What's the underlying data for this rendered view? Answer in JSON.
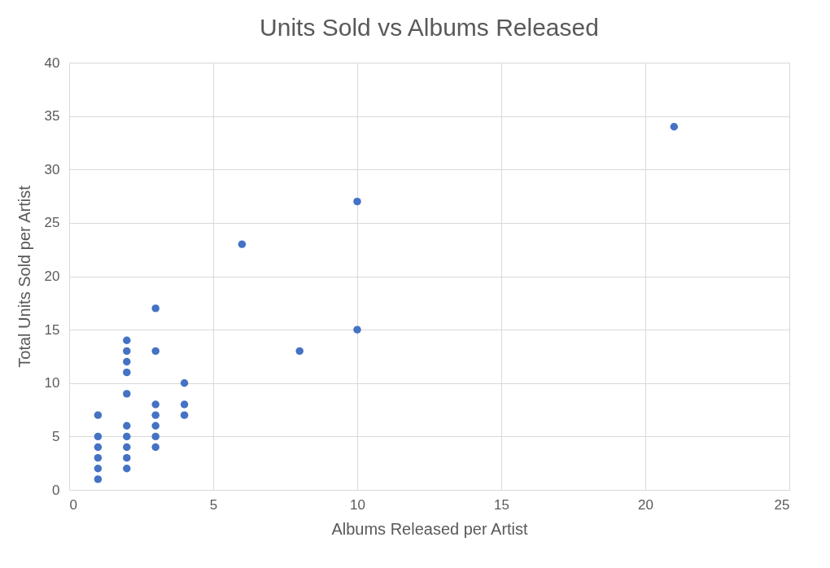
{
  "chart_data": {
    "type": "scatter",
    "title": "Units Sold vs Albums Released",
    "xlabel": "Albums Released per Artist",
    "ylabel": "Total Units Sold per Artist",
    "x": [
      1,
      1,
      1,
      1,
      1,
      1,
      2,
      2,
      2,
      2,
      2,
      2,
      2,
      2,
      2,
      2,
      3,
      3,
      3,
      3,
      3,
      3,
      3,
      4,
      4,
      4,
      6,
      8,
      10,
      10,
      21
    ],
    "values": [
      1,
      2,
      3,
      4,
      5,
      7,
      2,
      3,
      4,
      5,
      6,
      9,
      11,
      12,
      13,
      14,
      4,
      5,
      6,
      7,
      8,
      13,
      17,
      7,
      8,
      10,
      23,
      13,
      15,
      27,
      34
    ],
    "color": "#4472c4",
    "marker": "circle",
    "xlim": [
      0,
      25
    ],
    "xticks": [
      0,
      5,
      10,
      15,
      20,
      25
    ],
    "ylim": [
      0,
      40
    ],
    "yticks": [
      0,
      5,
      10,
      15,
      20,
      25,
      30,
      35,
      40
    ],
    "grid": true
  }
}
